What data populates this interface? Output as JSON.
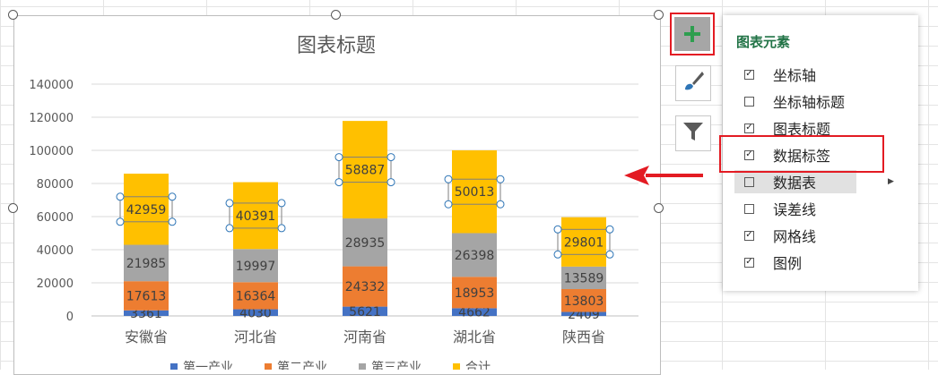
{
  "chart_data": {
    "type": "bar",
    "stacked": true,
    "title": "图表标题",
    "categories": [
      "安徽省",
      "河北省",
      "河南省",
      "湖北省",
      "陕西省"
    ],
    "series": [
      {
        "name": "第一产业",
        "color": "#4472c4",
        "values": [
          3361,
          4030,
          5621,
          4662,
          2409
        ]
      },
      {
        "name": "第二产业",
        "color": "#ed7d31",
        "values": [
          17613,
          16364,
          24332,
          18953,
          13803
        ]
      },
      {
        "name": "第三产业",
        "color": "#a5a5a5",
        "values": [
          21985,
          19997,
          28935,
          26398,
          13589
        ]
      },
      {
        "name": "合计",
        "color": "#ffc000",
        "values": [
          42959,
          40391,
          58887,
          50013,
          29801
        ]
      }
    ],
    "ylim": [
      0,
      140000
    ],
    "yticks": [
      0,
      20000,
      40000,
      60000,
      80000,
      100000,
      120000,
      140000
    ],
    "grid": true,
    "legend": "bottom",
    "data_labels": true,
    "selected_series": "合计"
  },
  "side_buttons": {
    "add_icon": "plus-icon",
    "style_icon": "brush-icon",
    "filter_icon": "filter-icon"
  },
  "chart_elements_panel": {
    "title": "图表元素",
    "items": [
      {
        "label": "坐标轴",
        "checked": true
      },
      {
        "label": "坐标轴标题",
        "checked": false
      },
      {
        "label": "图表标题",
        "checked": true
      },
      {
        "label": "数据标签",
        "checked": true
      },
      {
        "label": "数据表",
        "checked": false,
        "has_submenu": true,
        "hovered": true
      },
      {
        "label": "误差线",
        "checked": false
      },
      {
        "label": "网格线",
        "checked": true
      },
      {
        "label": "图例",
        "checked": true
      }
    ]
  },
  "colors": {
    "accent_green": "#217346",
    "highlight_red": "#e31b23",
    "grid_line": "#d9d9d9"
  }
}
